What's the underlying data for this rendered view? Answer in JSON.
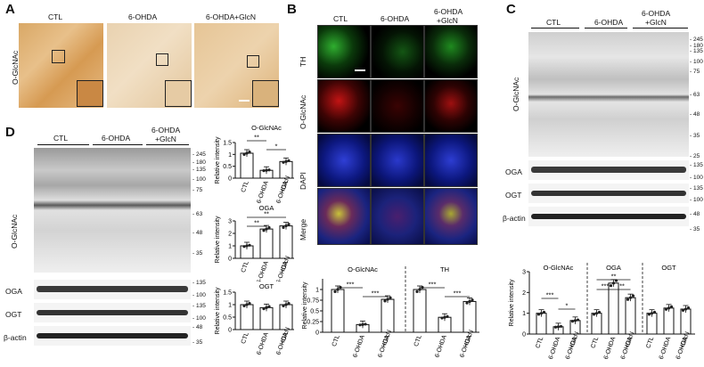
{
  "panels": {
    "A": "A",
    "B": "B",
    "C": "C",
    "D": "D"
  },
  "groups": {
    "ctl": "CTL",
    "ohda": "6-OHDA",
    "glcn": "6-OHDA+GlcN",
    "glcn_l1": "6-OHDA",
    "glcn_l2": "+GlcN"
  },
  "labels": {
    "oglcnac": "O-GlcNAc",
    "th": "TH",
    "dapi": "DAPI",
    "merge": "Merge",
    "oga": "OGA",
    "ogt": "OGT",
    "actin": "β-actin",
    "rel": "Relative intensity"
  },
  "mw_c": [
    "245",
    "180",
    "135",
    "100",
    "75",
    "63",
    "48",
    "35",
    "25",
    "135",
    "100",
    "135",
    "100",
    "48",
    "35"
  ],
  "mw_d": [
    "245",
    "180",
    "135",
    "100",
    "75",
    "63",
    "48",
    "35",
    "135",
    "100",
    "135",
    "100",
    "48",
    "35"
  ],
  "chart_data": [
    {
      "type": "bar",
      "panel": "B",
      "title": "O-GlcNAc",
      "categories": [
        "CTL",
        "6-OHDA",
        "6-OHDA +GlcN"
      ],
      "values": [
        1.0,
        0.18,
        0.77
      ],
      "ylim": [
        0,
        1.25
      ],
      "ylabel": "Relative intensity",
      "sig": [
        "***",
        "***"
      ]
    },
    {
      "type": "bar",
      "panel": "B",
      "title": "TH",
      "categories": [
        "CTL",
        "6-OHDA",
        "6-OHDA +GlcN"
      ],
      "values": [
        1.0,
        0.35,
        0.72
      ],
      "ylim": [
        0,
        1.25
      ],
      "sig": [
        "***",
        "***"
      ]
    },
    {
      "type": "bar",
      "panel": "C",
      "title": "O-GlcNAc",
      "categories": [
        "CTL",
        "6-OHDA",
        "6-OHDA +GlcN"
      ],
      "values": [
        1.0,
        0.35,
        0.65
      ],
      "ylim": [
        0,
        3
      ],
      "ylabel": "Relative intensity",
      "sig": [
        "***",
        "*"
      ]
    },
    {
      "type": "bar",
      "panel": "C",
      "title": "OGA",
      "categories": [
        "CTL",
        "6-OHDA",
        "6-OHDA +GlcN"
      ],
      "values": [
        1.0,
        2.45,
        1.75
      ],
      "ylim": [
        0,
        3
      ],
      "sig": [
        "***",
        "**",
        "**"
      ]
    },
    {
      "type": "bar",
      "panel": "C",
      "title": "OGT",
      "categories": [
        "CTL",
        "6-OHDA",
        "6-OHDA +GlcN"
      ],
      "values": [
        1.0,
        1.25,
        1.2
      ],
      "ylim": [
        0,
        3
      ]
    },
    {
      "type": "bar",
      "panel": "D",
      "title": "O-GlcNAc",
      "categories": [
        "CTL",
        "6-OHDA",
        "6-OHDA +GlcN"
      ],
      "values": [
        1.05,
        0.33,
        0.7
      ],
      "ylim": [
        0,
        1.5
      ],
      "ylabel": "Relative intensity",
      "sig": [
        "**",
        "*"
      ]
    },
    {
      "type": "bar",
      "panel": "D",
      "title": "OGA",
      "categories": [
        "CTL",
        "6-OHDA",
        "6-OHDA +GlcN"
      ],
      "values": [
        1.0,
        2.35,
        2.6
      ],
      "ylim": [
        0,
        3
      ],
      "ylabel": "Relative intensity",
      "sig": [
        "**",
        "**"
      ]
    },
    {
      "type": "bar",
      "panel": "D",
      "title": "OGT",
      "categories": [
        "CTL",
        "6-OHDA",
        "6-OHDA +GlcN"
      ],
      "values": [
        1.0,
        0.88,
        1.0
      ],
      "ylim": [
        0,
        1.5
      ],
      "ylabel": "Relative intensity"
    }
  ]
}
